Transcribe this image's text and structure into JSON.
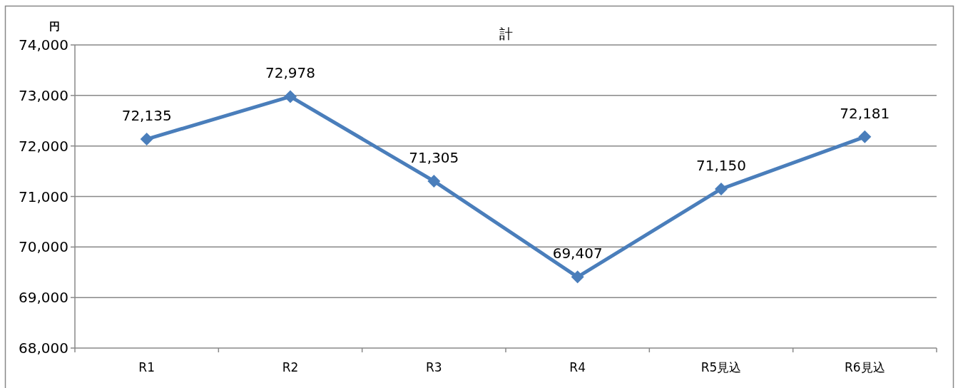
{
  "chart_data": {
    "type": "line",
    "title": "計",
    "ylabel": "円",
    "categories": [
      "R1",
      "R2",
      "R3",
      "R4",
      "R5見込",
      "R6見込"
    ],
    "series": [
      {
        "color": "#4a7ebb",
        "values": [
          72135,
          72978,
          71305,
          69407,
          71150,
          72181
        ]
      }
    ],
    "ylim": [
      68000,
      74000
    ],
    "yticks": [
      {
        "value": 68000,
        "label": "68,000"
      },
      {
        "value": 69000,
        "label": "69,000"
      },
      {
        "value": 70000,
        "label": "70,000"
      },
      {
        "value": 71000,
        "label": "71,000"
      },
      {
        "value": 72000,
        "label": "72,000"
      },
      {
        "value": 73000,
        "label": "73,000"
      },
      {
        "value": 74000,
        "label": "74,000"
      }
    ],
    "grid": "y",
    "marker": "diamond",
    "line_style": "solid",
    "value_labels": [
      "72,135",
      "72,978",
      "71,305",
      "69,407",
      "71,150",
      "72,181"
    ]
  }
}
